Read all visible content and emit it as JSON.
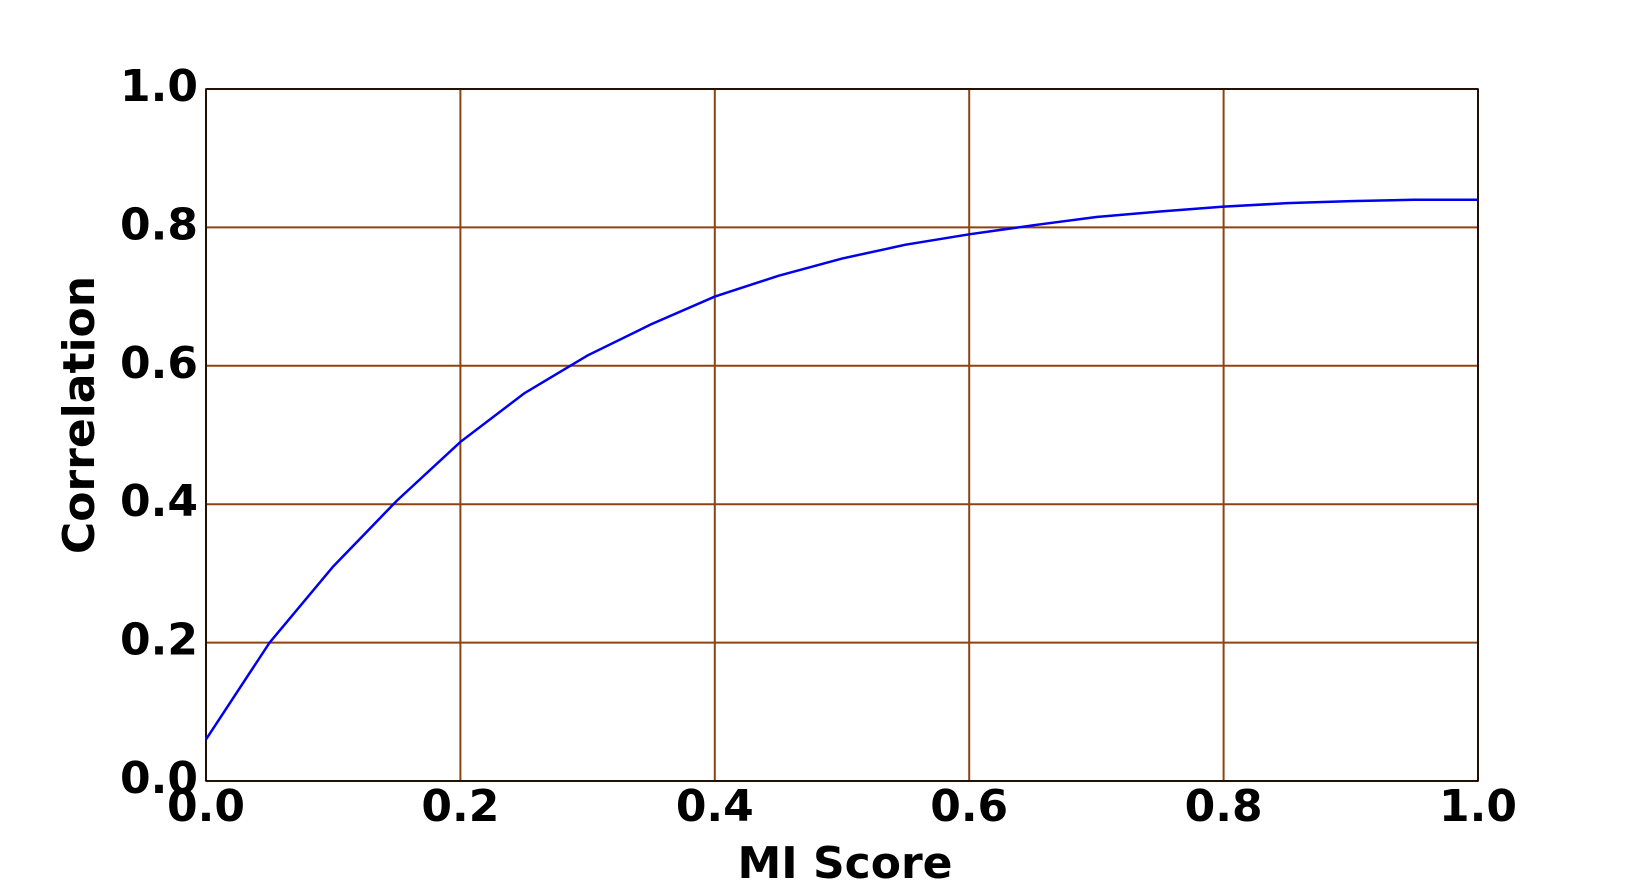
{
  "chart_data": {
    "type": "line",
    "x_label": "MI Score",
    "y_label": "Correlation",
    "x": [
      0,
      0.05,
      0.1,
      0.15,
      0.2,
      0.25,
      0.3,
      0.35,
      0.4,
      0.45,
      0.5,
      0.55,
      0.6,
      0.65,
      0.7,
      0.75,
      0.8,
      0.85,
      0.9,
      0.95,
      1.0
    ],
    "series": [
      {
        "color": "#0000ee",
        "values": [
          0.06,
          0.2,
          0.31,
          0.405,
          0.49,
          0.56,
          0.615,
          0.66,
          0.7,
          0.73,
          0.755,
          0.775,
          0.79,
          0.803,
          0.815,
          0.823,
          0.83,
          0.835,
          0.838,
          0.84,
          0.84
        ]
      }
    ],
    "xlim": [
      0,
      1
    ],
    "ylim": [
      0,
      1
    ],
    "xticks": [
      {
        "value": 0,
        "label": "0.0"
      },
      0.2,
      0.4,
      0.6,
      0.8,
      {
        "value": 1,
        "label": "1.0"
      }
    ],
    "yticks": [
      {
        "value": 0,
        "label": "0.0"
      },
      0.2,
      0.4,
      0.6,
      0.8,
      {
        "value": 1,
        "label": "1.0"
      }
    ],
    "grid": true,
    "grid_color": "#8b4513"
  }
}
